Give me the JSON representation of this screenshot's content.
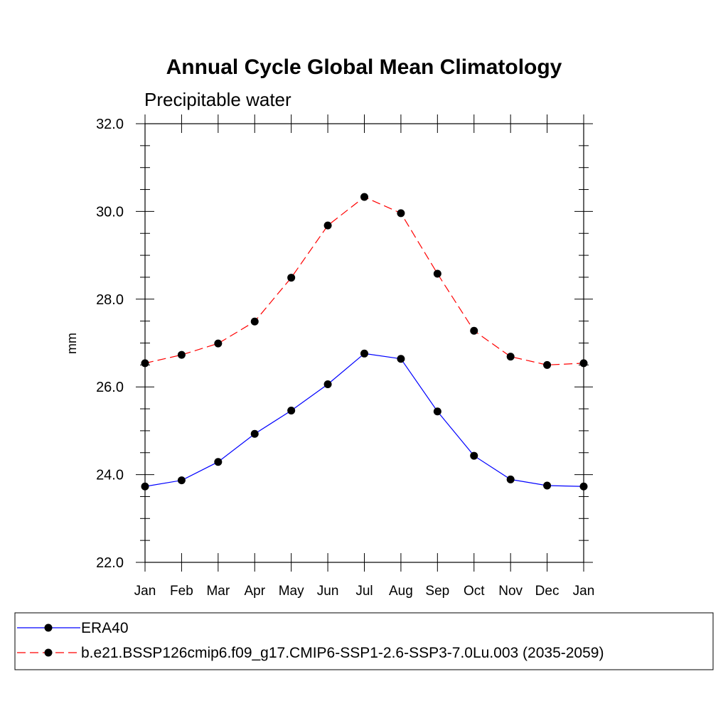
{
  "chart_data": {
    "type": "line",
    "title": "Annual Cycle Global Mean Climatology",
    "subtitle": "Precipitable water",
    "xlabel": "",
    "ylabel": "mm",
    "ylim": [
      22.0,
      32.0
    ],
    "y_ticks": [
      "22.0",
      "24.0",
      "26.0",
      "28.0",
      "30.0",
      "32.0"
    ],
    "categories": [
      "Jan",
      "Feb",
      "Mar",
      "Apr",
      "May",
      "Jun",
      "Jul",
      "Aug",
      "Sep",
      "Oct",
      "Nov",
      "Dec",
      "Jan"
    ],
    "grid": false,
    "legend_position": "bottom",
    "series": [
      {
        "name": "ERA40",
        "color": "#0000ff",
        "dash": "solid",
        "marker": "circle",
        "values": [
          23.73,
          23.87,
          24.29,
          24.93,
          25.46,
          26.06,
          26.76,
          26.64,
          25.44,
          24.43,
          23.89,
          23.75,
          23.73
        ]
      },
      {
        "name": "b.e21.BSSP126cmip6.f09_g17.CMIP6-SSP1-2.6-SSP3-7.0Lu.003 (2035-2059)",
        "color": "#ff0000",
        "dash": "dashed",
        "marker": "circle",
        "values": [
          26.54,
          26.73,
          26.99,
          27.49,
          28.49,
          29.68,
          30.33,
          29.96,
          28.58,
          27.28,
          26.69,
          26.5,
          26.54
        ]
      }
    ]
  }
}
